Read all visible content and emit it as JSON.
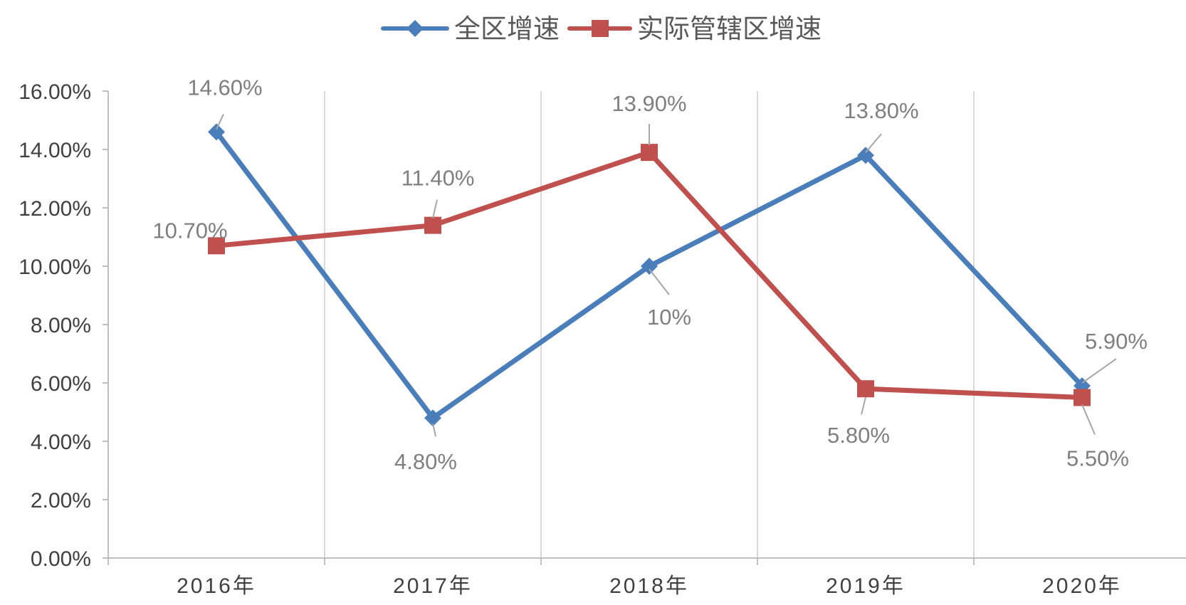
{
  "chart_data": {
    "type": "line",
    "categories": [
      "2016年",
      "2017年",
      "2018年",
      "2019年",
      "2020年"
    ],
    "y_ticks": [
      "0.00%",
      "2.00%",
      "4.00%",
      "6.00%",
      "8.00%",
      "10.00%",
      "12.00%",
      "14.00%",
      "16.00%"
    ],
    "ylim": [
      0,
      16
    ],
    "grid": "vertical",
    "legend_position": "top",
    "series": [
      {
        "name": "全区增速",
        "color": "#4a7ebb",
        "marker": "diamond",
        "values": [
          14.6,
          4.8,
          10.0,
          13.8,
          5.9
        ],
        "labels": [
          "14.60%",
          "4.80%",
          "10%",
          "13.80%",
          "5.90%"
        ]
      },
      {
        "name": "实际管辖区增速",
        "color": "#c0504d",
        "marker": "square",
        "values": [
          10.7,
          11.4,
          13.9,
          5.8,
          5.5
        ],
        "labels": [
          "10.70%",
          "11.40%",
          "13.90%",
          "5.80%",
          "5.50%"
        ]
      }
    ]
  }
}
